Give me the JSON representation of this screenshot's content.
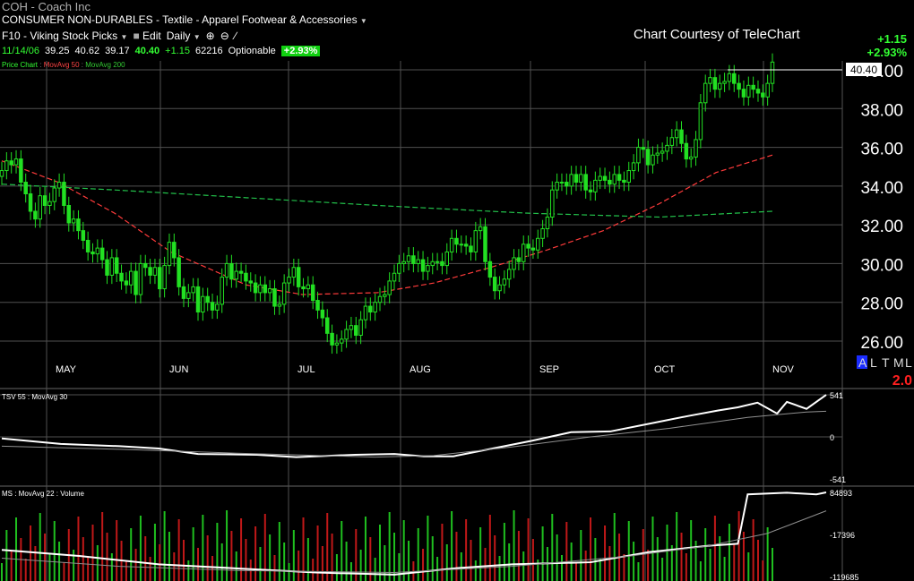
{
  "header": {
    "title": "COH - Coach Inc",
    "sector": "CONSUMER NON-DURABLES - Textile - Apparel Footwear & Accessories",
    "watchlist": "F10 - Viking Stock Picks",
    "edit_label": "Edit",
    "period": "Daily",
    "date": "11/14/06",
    "open": "39.25",
    "high": "40.62",
    "low": "39.17",
    "close": "40.40",
    "change": "+1.15",
    "volume": "62216",
    "optionable": "Optionable",
    "pct_change": "+2.93%",
    "courtesy": "Chart Courtesy of TeleChart",
    "right_change": "+1.15",
    "right_pct": "+2.93%"
  },
  "price_legend": {
    "label": "Price Chart",
    "ma1": "MovAvg 50",
    "ma2": "MovAvg 200"
  },
  "tsv_legend": {
    "label": "TSV 55",
    "ma": "MovAvg 30"
  },
  "ms_legend": {
    "label": "MS",
    "ma": "MovAvg 22",
    "vol": "Volume"
  },
  "scale_controls": [
    "A",
    "L",
    "T",
    "M",
    "L"
  ],
  "scale_value": "2.0",
  "colors": {
    "up": "#22e022",
    "ma50": "#ff3b3b",
    "ma200": "#22c04a",
    "grid": "#505050",
    "ind": "#ffffff",
    "ind_ma": "#909090",
    "vol_up": "#1fbf1f",
    "vol_down": "#c01818"
  },
  "chart_data": [
    {
      "type": "candlestick",
      "title": "COH - Coach Inc",
      "x_labels": [
        "MAY",
        "JUN",
        "JUL",
        "AUG",
        "SEP",
        "OCT",
        "NOV"
      ],
      "y_ticks": [
        "26.00",
        "28.00",
        "30.00",
        "32.00",
        "34.00",
        "36.00",
        "38.00",
        "40.00"
      ],
      "ylim": [
        25,
        41
      ],
      "last_price_label": "40.40",
      "series": [
        {
          "name": "Price",
          "closes": [
            34.8,
            35.3,
            35.1,
            35.4,
            34.2,
            33.6,
            32.7,
            32.3,
            33.5,
            33.0,
            33.2,
            33.9,
            34.2,
            33.0,
            32.1,
            32.3,
            31.7,
            31.2,
            30.6,
            30.5,
            30.8,
            30.2,
            29.4,
            30.3,
            29.5,
            29.1,
            28.9,
            29.6,
            28.4,
            30.0,
            29.8,
            29.4,
            29.8,
            28.7,
            29.9,
            31.1,
            30.3,
            28.8,
            28.2,
            28.5,
            28.8,
            27.5,
            28.3,
            28.0,
            27.6,
            27.9,
            29.3,
            30.0,
            29.2,
            29.6,
            29.5,
            29.1,
            29.0,
            28.5,
            28.9,
            28.5,
            28.7,
            27.8,
            27.9,
            29.0,
            29.3,
            29.8,
            28.8,
            28.7,
            28.9,
            28.1,
            27.6,
            27.2,
            26.4,
            25.8,
            25.9,
            26.1,
            26.6,
            26.8,
            26.3,
            27.1,
            27.8,
            27.5,
            28.0,
            28.3,
            28.4,
            29.1,
            29.5,
            30.0,
            30.1,
            30.4,
            30.0,
            30.2,
            29.6,
            29.9,
            30.1,
            30.1,
            29.9,
            30.6,
            31.3,
            31.0,
            31.0,
            30.9,
            30.6,
            31.7,
            31.9,
            30.1,
            29.3,
            28.6,
            28.9,
            29.2,
            29.7,
            30.3,
            30.1,
            31.0,
            30.8,
            30.7,
            31.3,
            31.8,
            32.4,
            33.8,
            34.2,
            34.2,
            34.0,
            34.6,
            34.2,
            34.6,
            33.8,
            33.7,
            34.3,
            34.5,
            34.3,
            34.1,
            34.6,
            34.3,
            34.2,
            34.8,
            35.2,
            36.0,
            35.9,
            35.1,
            35.6,
            35.7,
            35.8,
            36.1,
            36.5,
            36.9,
            36.2,
            35.4,
            35.5,
            36.4,
            38.3,
            39.3,
            39.6,
            39.0,
            39.3,
            39.4,
            39.8,
            39.3,
            39.0,
            38.6,
            39.2,
            39.0,
            38.8,
            38.6,
            39.3,
            40.4
          ]
        }
      ],
      "moving_averages": [
        {
          "name": "MovAvg 50",
          "values": [
            [
              0,
              35.3
            ],
            [
              30,
              34.2
            ],
            [
              60,
              32.6
            ],
            [
              90,
              30.6
            ],
            [
              130,
              28.9
            ],
            [
              160,
              28.4
            ],
            [
              200,
              28.5
            ],
            [
              230,
              29.0
            ],
            [
              260,
              29.8
            ],
            [
              290,
              30.7
            ],
            [
              320,
              31.7
            ],
            [
              350,
              33.1
            ],
            [
              380,
              34.7
            ],
            [
              410,
              35.6
            ]
          ]
        },
        {
          "name": "MovAvg 200",
          "values": [
            [
              0,
              34.1
            ],
            [
              60,
              33.8
            ],
            [
              130,
              33.4
            ],
            [
              200,
              33.0
            ],
            [
              280,
              32.6
            ],
            [
              350,
              32.4
            ],
            [
              390,
              32.6
            ],
            [
              410,
              32.7
            ]
          ]
        }
      ]
    },
    {
      "type": "line",
      "title": "TSV 55",
      "y_ticks": [
        "541",
        "0",
        "-541"
      ],
      "ylim": [
        -541,
        541
      ],
      "series": [
        {
          "name": "TSV 55",
          "values": [
            [
              0,
              -20
            ],
            [
              30,
              -90
            ],
            [
              60,
              -120
            ],
            [
              80,
              -150
            ],
            [
              100,
              -220
            ],
            [
              130,
              -230
            ],
            [
              150,
              -260
            ],
            [
              180,
              -230
            ],
            [
              200,
              -220
            ],
            [
              215,
              -250
            ],
            [
              230,
              -250
            ],
            [
              250,
              -150
            ],
            [
              270,
              -50
            ],
            [
              290,
              60
            ],
            [
              310,
              70
            ],
            [
              330,
              170
            ],
            [
              350,
              270
            ],
            [
              365,
              340
            ],
            [
              375,
              380
            ],
            [
              385,
              440
            ],
            [
              395,
              300
            ],
            [
              400,
              450
            ],
            [
              410,
              360
            ],
            [
              420,
              540
            ]
          ]
        },
        {
          "name": "MovAvg 30",
          "values": [
            [
              0,
              -120
            ],
            [
              60,
              -160
            ],
            [
              120,
              -210
            ],
            [
              190,
              -260
            ],
            [
              220,
              -240
            ],
            [
              260,
              -130
            ],
            [
              300,
              0
            ],
            [
              340,
              110
            ],
            [
              380,
              250
            ],
            [
              410,
              320
            ],
            [
              420,
              330
            ]
          ]
        }
      ]
    },
    {
      "type": "line",
      "title": "MS",
      "y_ticks": [
        "84893",
        "-17396",
        "-119685"
      ],
      "ylim": [
        -119685,
        84893
      ],
      "series": [
        {
          "name": "MS",
          "values": [
            [
              0,
              -55000
            ],
            [
              40,
              -70000
            ],
            [
              80,
              -90000
            ],
            [
              120,
              -100000
            ],
            [
              160,
              -110000
            ],
            [
              200,
              -115000
            ],
            [
              230,
              -100000
            ],
            [
              260,
              -90000
            ],
            [
              300,
              -85000
            ],
            [
              330,
              -60000
            ],
            [
              360,
              -45000
            ],
            [
              375,
              -40000
            ],
            [
              380,
              80000
            ],
            [
              400,
              84000
            ],
            [
              415,
              80000
            ],
            [
              420,
              84893
            ]
          ]
        },
        {
          "name": "MovAvg 22",
          "values": [
            [
              0,
              -75000
            ],
            [
              60,
              -95000
            ],
            [
              120,
              -105000
            ],
            [
              200,
              -110000
            ],
            [
              260,
              -95000
            ],
            [
              320,
              -70000
            ],
            [
              360,
              -45000
            ],
            [
              390,
              -15000
            ],
            [
              420,
              40000
            ]
          ]
        }
      ],
      "volume_note": "Volume"
    }
  ]
}
